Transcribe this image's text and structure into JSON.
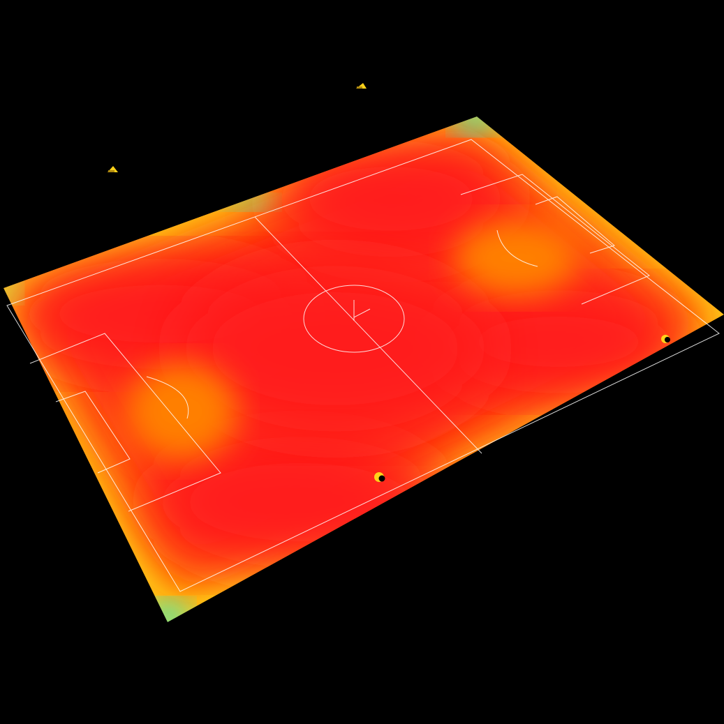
{
  "scene": {
    "background_color": "#000000",
    "heatmap_colormap": [
      "#2ee8c8",
      "#ffff00",
      "#ff9a00",
      "#ff1f1f"
    ],
    "line_color": "#ffffff",
    "lights": [
      {
        "name": "floodlight-top",
        "icon": "floodlight-icon"
      },
      {
        "name": "floodlight-left",
        "icon": "floodlight-icon"
      }
    ],
    "markers": [
      {
        "name": "right-edge-marker",
        "icon": "light-marker-icon"
      },
      {
        "name": "bottom-sideline-marker",
        "icon": "light-marker-icon"
      }
    ]
  }
}
